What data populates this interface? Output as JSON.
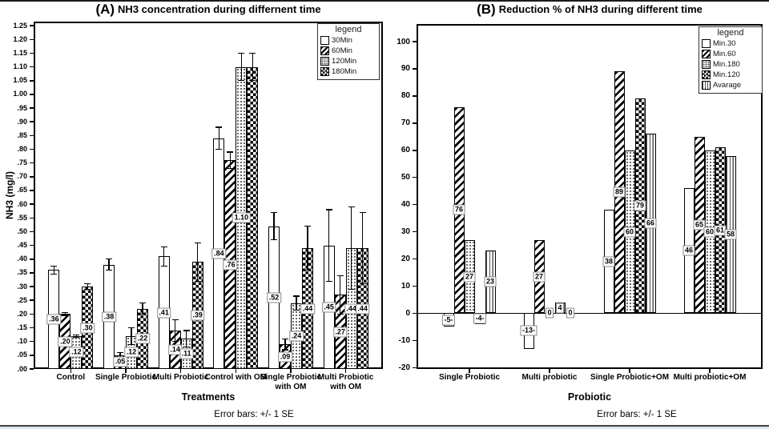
{
  "chart_data": [
    {
      "type": "bar",
      "panel": "A",
      "title_prefix": "(A)",
      "title": "NH3 concentration during differnent time",
      "xlabel": "Treatments",
      "ylabel": "NH3 (mg/l)",
      "footer": "Error bars: +/- 1 SE",
      "legend_title": "legend",
      "legend_position": "top-right",
      "grid": false,
      "ylim": [
        0,
        1.265
      ],
      "ytick_values": [
        1.25,
        1.2,
        1.15,
        1.1,
        1.05,
        1.0,
        0.95,
        0.9,
        0.85,
        0.8,
        0.75,
        0.7,
        0.65,
        0.6,
        0.55,
        0.5,
        0.45,
        0.4,
        0.35,
        0.3,
        0.25,
        0.2,
        0.15,
        0.1,
        0.05,
        0.0
      ],
      "ytick_labels": [
        "1.25",
        "1.20",
        "1.15",
        "1.10",
        "1.05",
        "1.00",
        ".95",
        ".90",
        ".85",
        ".80",
        ".75",
        ".70",
        ".65",
        ".60",
        ".55",
        ".50",
        ".45",
        ".40",
        ".35",
        ".30",
        ".25",
        ".20",
        ".15",
        ".10",
        ".05",
        ".00"
      ],
      "categories": [
        "Control",
        "Single Probiotic",
        "Multi Probiotic",
        "Control with OM",
        "Single Probiotic with OM",
        "Multi Probiotic with OM"
      ],
      "category_labels": [
        "Control",
        "Single Probiotic",
        "Multi Probiotic",
        "Control with OM",
        "Single Probiotic\nwith OM",
        "Multi Probiotic\nwith OM"
      ],
      "series": [
        {
          "name": "30Min",
          "pattern": "plain",
          "values": [
            0.36,
            0.38,
            0.41,
            0.84,
            0.52,
            0.45
          ],
          "errors": [
            0.015,
            0.02,
            0.035,
            0.04,
            0.05,
            0.13
          ],
          "labels": [
            ".36",
            ".38",
            ".41",
            ".84",
            ".52",
            ".45"
          ]
        },
        {
          "name": "60Min",
          "pattern": "diag",
          "values": [
            0.2,
            0.05,
            0.14,
            0.76,
            0.09,
            0.27
          ],
          "errors": [
            0.005,
            0.01,
            0.04,
            0.03,
            0.02,
            0.07
          ],
          "labels": [
            ".20",
            ".05",
            ".14",
            ".76",
            ".09",
            ".27"
          ]
        },
        {
          "name": "120Min",
          "pattern": "dot",
          "values": [
            0.12,
            0.12,
            0.11,
            1.1,
            0.24,
            0.44
          ],
          "errors": [
            0.005,
            0.03,
            0.03,
            0.05,
            0.025,
            0.15
          ],
          "labels": [
            ".12",
            ".12",
            ".11",
            "1.10",
            ".24",
            ".44"
          ]
        },
        {
          "name": "180Min",
          "pattern": "check",
          "values": [
            0.3,
            0.22,
            0.39,
            1.1,
            0.44,
            0.44
          ],
          "errors": [
            0.01,
            0.02,
            0.07,
            0.05,
            0.08,
            0.13
          ],
          "labels": [
            ".30",
            ".22",
            ".39",
            "",
            ".44",
            ".44"
          ]
        }
      ]
    },
    {
      "type": "bar",
      "panel": "B",
      "title_prefix": "(B)",
      "title": "Reduction % of NH3 during different time",
      "xlabel": "Probiotic",
      "ylabel": "",
      "footer": "Error bars: +/- 1 SE",
      "legend_title": "legend",
      "legend_position": "top-right",
      "grid": false,
      "zero_line": true,
      "ylim": [
        -20.5,
        106.5
      ],
      "ytick_values": [
        100,
        90,
        80,
        70,
        60,
        50,
        40,
        30,
        20,
        10,
        0,
        -10,
        -20
      ],
      "ytick_labels": [
        "100",
        "90",
        "80",
        "70",
        "60",
        "50",
        "40",
        "30",
        "20",
        "10",
        "0",
        "-10",
        "-20"
      ],
      "categories": [
        "Single Probiotic",
        "Multi probiotic",
        "Single Probiotic+OM",
        "Multi probiotic+OM"
      ],
      "category_labels": [
        "Single Probiotic",
        "Multi probiotic",
        "Single Probiotic+OM",
        "Multi probiotic+OM"
      ],
      "series": [
        {
          "name": "Min.30",
          "pattern": "plain",
          "values": [
            -5,
            -13,
            38,
            46
          ],
          "labels": [
            "-5-",
            "-13-",
            "38",
            "46"
          ]
        },
        {
          "name": "Min.60",
          "pattern": "diag",
          "values": [
            76,
            27,
            89,
            65
          ],
          "labels": [
            "76",
            "27",
            "89",
            "65"
          ]
        },
        {
          "name": "Min.180",
          "pattern": "dot",
          "values": [
            27,
            0,
            60,
            60
          ],
          "labels": [
            "27",
            "0",
            "60",
            "60"
          ]
        },
        {
          "name": "Min.120",
          "pattern": "check",
          "values": [
            -4,
            4,
            79,
            61
          ],
          "labels": [
            "-4-",
            "4",
            "79",
            "61"
          ]
        },
        {
          "name": "Avarage",
          "pattern": "vlines",
          "values": [
            23,
            0,
            66,
            58
          ],
          "labels": [
            "23",
            "0",
            "66",
            "58"
          ]
        }
      ]
    }
  ]
}
